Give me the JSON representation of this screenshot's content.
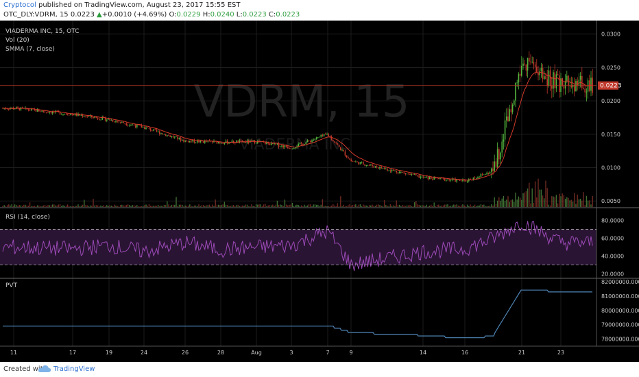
{
  "header": {
    "publisher": "Cryptocol",
    "published_text": " published on TradingView.com, August 23, 2017 15:55 EST",
    "symbol": "OTC_DLY:VDRM, 15",
    "last": "0.0223",
    "change": "+0.0010 (+4.69%)",
    "o_label": "O:",
    "o": "0.0229",
    "h_label": "H:",
    "h": "0.0240",
    "l_label": "L:",
    "l": "0.0223",
    "c_label": "C:",
    "c": "0.0223"
  },
  "legend": {
    "name": "VIADERMA INC, 15, OTC",
    "vol": "Vol (20)",
    "smma": "SMMA (7, close)"
  },
  "watermark": {
    "main": "VDRM, 15",
    "sub": "VIADERMA INC"
  },
  "rsi_label": "RSI (14, close)",
  "pvt_label": "PVT",
  "footer": {
    "created": "Created with",
    "brand": "TradingView"
  },
  "colors": {
    "background": "#000000",
    "candle_up": "#53b53d",
    "candle_down": "#c0392b",
    "smma": "#d43a2a",
    "rsi": "#9b4ab7",
    "rsi_band": "#2a1433",
    "pvt": "#4f86b8",
    "price_tag": "#c0392b",
    "grid": "#1c1c1c"
  },
  "chart_data": [
    {
      "type": "candlestick",
      "title": "VIADERMA INC, 15, OTC",
      "yticks": [
        "0.0050",
        "0.0100",
        "0.0150",
        "0.0200",
        "0.0250",
        "0.0300"
      ],
      "ylim": [
        0.0041,
        0.031
      ],
      "last_price": "0.0223",
      "x_ticks": [
        "11",
        "17",
        "19",
        "24",
        "26",
        "28",
        "Aug",
        "3",
        "7",
        "9",
        "14",
        "16",
        "21",
        "23"
      ],
      "series": [
        {
          "name": "close",
          "points": [
            [
              "11",
              0.0189
            ],
            [
              "17",
              0.018
            ],
            [
              "19",
              0.0172
            ],
            [
              "24",
              0.016
            ],
            [
              "26",
              0.014
            ],
            [
              "28",
              0.0138
            ],
            [
              "Aug",
              0.0139
            ],
            [
              "3",
              0.013
            ],
            [
              "7",
              0.015
            ],
            [
              "9",
              0.011
            ],
            [
              "14",
              0.0085
            ],
            [
              "16",
              0.008
            ],
            [
              "19",
              0.0095
            ],
            [
              "21",
              0.026
            ],
            [
              "23",
              0.0223
            ]
          ]
        }
      ]
    },
    {
      "type": "line",
      "title": "RSI (14, close)",
      "yticks": [
        "20.0000",
        "40.0000",
        "60.0000",
        "80.0000"
      ],
      "ylim": [
        15,
        92
      ],
      "bands": [
        30,
        70
      ],
      "series": [
        {
          "name": "RSI",
          "points": [
            [
              "11",
              50
            ],
            [
              "17",
              48
            ],
            [
              "19",
              52
            ],
            [
              "24",
              45
            ],
            [
              "26",
              55
            ],
            [
              "28",
              47
            ],
            [
              "Aug",
              50
            ],
            [
              "3",
              52
            ],
            [
              "7",
              68
            ],
            [
              "9",
              30
            ],
            [
              "14",
              45
            ],
            [
              "16",
              48
            ],
            [
              "19",
              60
            ],
            [
              "21",
              78
            ],
            [
              "23",
              55
            ]
          ]
        }
      ]
    },
    {
      "type": "line",
      "title": "PVT",
      "yticks": [
        "78000000.0000",
        "79000000.0000",
        "80000000.0000",
        "81000000.0000",
        "82000000.0000"
      ],
      "ylim": [
        77500000,
        82200000
      ],
      "series": [
        {
          "name": "PVT",
          "points": [
            [
              "11",
              78900000
            ],
            [
              "17",
              78800000
            ],
            [
              "19",
              78800000
            ],
            [
              "24",
              78800000
            ],
            [
              "26",
              78800000
            ],
            [
              "28",
              78800000
            ],
            [
              "Aug",
              78850000
            ],
            [
              "3",
              78850000
            ],
            [
              "7",
              78900000
            ],
            [
              "9",
              78400000
            ],
            [
              "14",
              78200000
            ],
            [
              "16",
              78000000
            ],
            [
              "19",
              78300000
            ],
            [
              "21",
              81500000
            ],
            [
              "23",
              81200000
            ]
          ]
        }
      ]
    }
  ]
}
